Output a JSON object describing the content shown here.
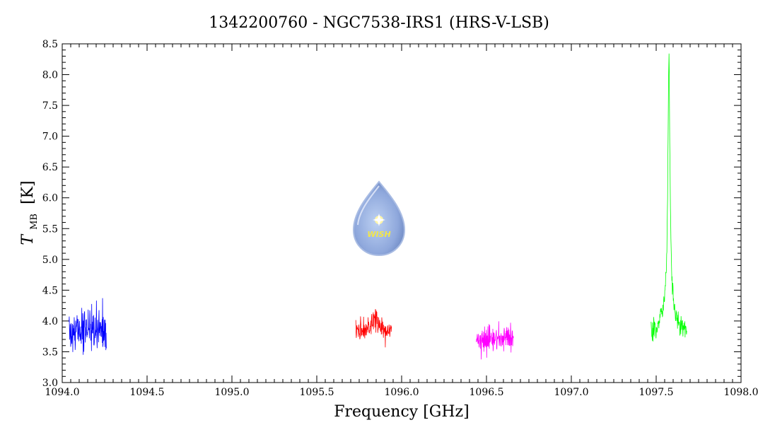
{
  "chart_data": {
    "type": "line",
    "title": "1342200760 - NGC7538-IRS1 (HRS-V-LSB)",
    "xlabel": "Frequency [GHz]",
    "ylabel": {
      "symbol": "T",
      "subscript": "MB",
      "unit": "[K]"
    },
    "xlim": [
      1094.0,
      1098.0
    ],
    "ylim": [
      3.0,
      8.5
    ],
    "x_ticks": [
      "1094.0",
      "1094.5",
      "1095.0",
      "1095.5",
      "1096.0",
      "1096.5",
      "1097.0",
      "1097.5",
      "1098.0"
    ],
    "y_ticks": [
      "3.0",
      "3.5",
      "4.0",
      "4.5",
      "5.0",
      "5.5",
      "6.0",
      "6.5",
      "7.0",
      "7.5",
      "8.0",
      "8.5"
    ],
    "grid": false,
    "logo_text": "WISH",
    "series": [
      {
        "color": "#0000ff",
        "x_range": [
          1094.04,
          1094.26
        ],
        "baseline": 3.85,
        "noise": 0.18,
        "seed": 11,
        "features": []
      },
      {
        "color": "#ff0000",
        "x_range": [
          1095.73,
          1095.94
        ],
        "baseline": 3.82,
        "noise": 0.1,
        "seed": 23,
        "features": [
          {
            "center": 1095.84,
            "width": 0.02,
            "amplitude": 0.25
          }
        ]
      },
      {
        "color": "#ff00ff",
        "x_range": [
          1096.44,
          1096.66
        ],
        "baseline": 3.72,
        "noise": 0.11,
        "seed": 37,
        "features": []
      },
      {
        "color": "#00ff00",
        "x_range": [
          1097.47,
          1097.68
        ],
        "baseline": 3.78,
        "noise": 0.09,
        "seed": 53,
        "features": [
          {
            "center": 1097.575,
            "width": 0.007,
            "amplitude": 3.95
          },
          {
            "center": 1097.575,
            "width": 0.035,
            "amplitude": 0.55
          }
        ]
      }
    ]
  }
}
